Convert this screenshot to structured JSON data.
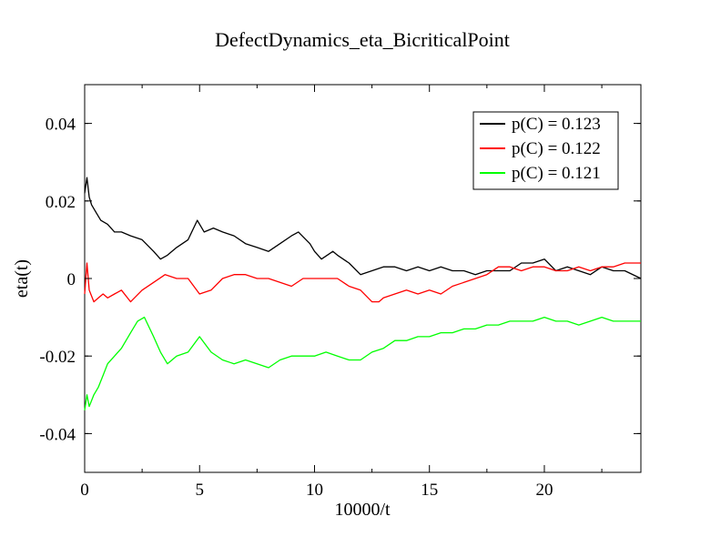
{
  "chart_data": {
    "type": "line",
    "title": "DefectDynamics_eta_BicriticalPoint",
    "xlabel": "10000/t",
    "ylabel": "eta(t)",
    "xlim": [
      0,
      24.2
    ],
    "ylim": [
      -0.05,
      0.05
    ],
    "xticks": [
      0,
      5,
      10,
      15,
      20
    ],
    "xtick_labels": [
      "0",
      "5",
      "10",
      "15",
      "20"
    ],
    "yticks": [
      -0.04,
      -0.02,
      0,
      0.02,
      0.04
    ],
    "ytick_labels": [
      "-0.04",
      "-0.02",
      "0",
      "0.02",
      "0.04"
    ],
    "grid": false,
    "legend_position": "top-right",
    "series": [
      {
        "name": "p(C) = 0.123",
        "color": "#000000",
        "x": [
          0,
          0.1,
          0.2,
          0.3,
          0.5,
          0.7,
          1.0,
          1.3,
          1.6,
          2.0,
          2.5,
          3.0,
          3.3,
          3.6,
          4.0,
          4.5,
          4.9,
          5.2,
          5.6,
          6.0,
          6.5,
          7.0,
          7.5,
          8.0,
          8.5,
          9.0,
          9.3,
          9.8,
          10.0,
          10.3,
          10.8,
          11.0,
          11.5,
          12.0,
          12.5,
          13.0,
          13.5,
          14.0,
          14.5,
          15.0,
          15.5,
          16.0,
          16.5,
          17.0,
          17.5,
          18.0,
          18.5,
          19.0,
          19.5,
          20.0,
          20.5,
          21.0,
          21.5,
          22.0,
          22.5,
          23.0,
          23.5,
          24.2
        ],
        "y": [
          0.022,
          0.026,
          0.021,
          0.019,
          0.017,
          0.015,
          0.014,
          0.012,
          0.012,
          0.011,
          0.01,
          0.007,
          0.005,
          0.006,
          0.008,
          0.01,
          0.015,
          0.012,
          0.013,
          0.012,
          0.011,
          0.009,
          0.008,
          0.007,
          0.009,
          0.011,
          0.012,
          0.009,
          0.007,
          0.005,
          0.007,
          0.006,
          0.004,
          0.001,
          0.002,
          0.003,
          0.003,
          0.002,
          0.003,
          0.002,
          0.003,
          0.002,
          0.002,
          0.001,
          0.002,
          0.002,
          0.002,
          0.004,
          0.004,
          0.005,
          0.002,
          0.003,
          0.002,
          0.001,
          0.003,
          0.002,
          0.002,
          0.0
        ]
      },
      {
        "name": "p(C) = 0.122",
        "color": "#ff0000",
        "x": [
          0,
          0.1,
          0.2,
          0.4,
          0.6,
          0.8,
          1.0,
          1.3,
          1.6,
          2.0,
          2.5,
          3.0,
          3.5,
          4.0,
          4.5,
          5.0,
          5.5,
          6.0,
          6.5,
          7.0,
          7.5,
          8.0,
          8.5,
          9.0,
          9.5,
          10.0,
          10.5,
          11.0,
          11.5,
          12.0,
          12.5,
          12.8,
          13.0,
          13.5,
          14.0,
          14.5,
          15.0,
          15.5,
          16.0,
          16.5,
          17.0,
          17.5,
          18.0,
          18.5,
          19.0,
          19.5,
          20.0,
          20.5,
          21.0,
          21.5,
          22.0,
          22.5,
          23.0,
          23.5,
          24.2
        ],
        "y": [
          -0.004,
          0.004,
          -0.003,
          -0.006,
          -0.005,
          -0.004,
          -0.005,
          -0.004,
          -0.003,
          -0.006,
          -0.003,
          -0.001,
          0.001,
          0.0,
          0.0,
          -0.004,
          -0.003,
          0.0,
          0.001,
          0.001,
          0.0,
          0.0,
          -0.001,
          -0.002,
          0.0,
          0.0,
          0.0,
          0.0,
          -0.002,
          -0.003,
          -0.006,
          -0.006,
          -0.005,
          -0.004,
          -0.003,
          -0.004,
          -0.003,
          -0.004,
          -0.002,
          -0.001,
          0.0,
          0.001,
          0.003,
          0.003,
          0.002,
          0.003,
          0.003,
          0.002,
          0.002,
          0.003,
          0.002,
          0.003,
          0.003,
          0.004,
          0.004
        ]
      },
      {
        "name": "p(C) = 0.121",
        "color": "#00ff00",
        "x": [
          0,
          0.1,
          0.2,
          0.4,
          0.6,
          0.8,
          1.0,
          1.3,
          1.6,
          2.0,
          2.3,
          2.6,
          3.0,
          3.3,
          3.6,
          4.0,
          4.5,
          5.0,
          5.5,
          6.0,
          6.5,
          7.0,
          7.5,
          8.0,
          8.5,
          9.0,
          9.5,
          10.0,
          10.5,
          11.0,
          11.5,
          12.0,
          12.5,
          13.0,
          13.5,
          14.0,
          14.5,
          15.0,
          15.5,
          16.0,
          16.5,
          17.0,
          17.5,
          18.0,
          18.5,
          19.0,
          19.5,
          20.0,
          20.5,
          21.0,
          21.5,
          22.0,
          22.5,
          23.0,
          23.5,
          24.2
        ],
        "y": [
          -0.034,
          -0.03,
          -0.033,
          -0.03,
          -0.028,
          -0.025,
          -0.022,
          -0.02,
          -0.018,
          -0.014,
          -0.011,
          -0.01,
          -0.015,
          -0.019,
          -0.022,
          -0.02,
          -0.019,
          -0.015,
          -0.019,
          -0.021,
          -0.022,
          -0.021,
          -0.022,
          -0.023,
          -0.021,
          -0.02,
          -0.02,
          -0.02,
          -0.019,
          -0.02,
          -0.021,
          -0.021,
          -0.019,
          -0.018,
          -0.016,
          -0.016,
          -0.015,
          -0.015,
          -0.014,
          -0.014,
          -0.013,
          -0.013,
          -0.012,
          -0.012,
          -0.011,
          -0.011,
          -0.011,
          -0.01,
          -0.011,
          -0.011,
          -0.012,
          -0.011,
          -0.01,
          -0.011,
          -0.011,
          -0.011
        ]
      }
    ]
  }
}
